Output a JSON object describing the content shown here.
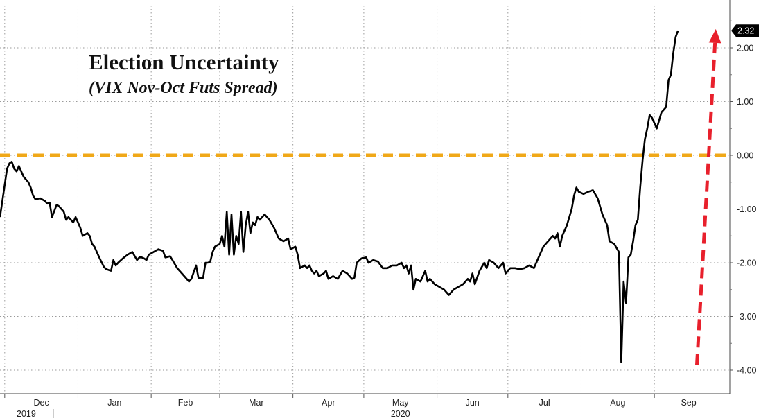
{
  "chart_data": {
    "type": "line",
    "title": "Election Uncertainty",
    "subtitle": "(VIX Nov-Oct Futs Spread)",
    "xlabel": "",
    "ylabel": "",
    "ylim": [
      -4.3,
      2.75
    ],
    "xlim": [
      "2019-11-29",
      "2020-09-30"
    ],
    "y_ticks": [
      2,
      1,
      0,
      -1,
      -2,
      -3,
      -4
    ],
    "y_tick_labels": [
      "2.00",
      "1.00",
      "0.00",
      "-1.00",
      "-2.00",
      "-3.00",
      "-4.00"
    ],
    "x_tick_labels": [
      "Dec",
      "Jan",
      "Feb",
      "Mar",
      "Apr",
      "May",
      "Jun",
      "Jul",
      "Aug",
      "Sep"
    ],
    "x_tick_dates": [
      "2019-12-01",
      "2020-01-01",
      "2020-02-01",
      "2020-03-01",
      "2020-04-01",
      "2020-05-01",
      "2020-06-01",
      "2020-07-01",
      "2020-08-01",
      "2020-09-01"
    ],
    "year_labels": [
      "2019",
      "2020"
    ],
    "grid": true,
    "axis_position": "right",
    "last_value_label": "2.32",
    "colors": {
      "line": "#000000",
      "reference_line": "#f0a818",
      "arrow": "#e8202c",
      "badge": "#000000",
      "grid": "#9a9a9a"
    },
    "reference_line": {
      "y": 0.0,
      "style": "dashed"
    },
    "arrow": {
      "from": [
        "2020-09-19",
        -3.9
      ],
      "to": [
        "2020-09-27",
        2.35
      ],
      "style": "dashed"
    },
    "series": [
      {
        "values": [
          [
            "2019-11-29",
            -1.15
          ],
          [
            "2019-12-02",
            -0.25
          ],
          [
            "2019-12-03",
            -0.15
          ],
          [
            "2019-12-04",
            -0.12
          ],
          [
            "2019-12-05",
            -0.25
          ],
          [
            "2019-12-06",
            -0.3
          ],
          [
            "2019-12-07",
            -0.2
          ],
          [
            "2019-12-08",
            -0.3
          ],
          [
            "2019-12-09",
            -0.4
          ],
          [
            "2019-12-10",
            -0.45
          ],
          [
            "2019-12-11",
            -0.5
          ],
          [
            "2019-12-12",
            -0.6
          ],
          [
            "2019-12-13",
            -0.75
          ],
          [
            "2019-12-14",
            -0.82
          ],
          [
            "2019-12-16",
            -0.8
          ],
          [
            "2019-12-18",
            -0.85
          ],
          [
            "2019-12-19",
            -0.9
          ],
          [
            "2019-12-20",
            -0.88
          ],
          [
            "2019-12-21",
            -1.15
          ],
          [
            "2019-12-23",
            -0.92
          ],
          [
            "2019-12-24",
            -0.95
          ],
          [
            "2019-12-26",
            -1.05
          ],
          [
            "2019-12-27",
            -1.2
          ],
          [
            "2019-12-28",
            -1.15
          ],
          [
            "2019-12-30",
            -1.25
          ],
          [
            "2019-12-31",
            -1.15
          ],
          [
            "2020-01-02",
            -1.35
          ],
          [
            "2020-01-03",
            -1.5
          ],
          [
            "2020-01-05",
            -1.45
          ],
          [
            "2020-01-06",
            -1.5
          ],
          [
            "2020-01-07",
            -1.65
          ],
          [
            "2020-01-08",
            -1.7
          ],
          [
            "2020-01-09",
            -1.8
          ],
          [
            "2020-01-10",
            -1.9
          ],
          [
            "2020-01-12",
            -2.08
          ],
          [
            "2020-01-13",
            -2.12
          ],
          [
            "2020-01-15",
            -2.15
          ],
          [
            "2020-01-16",
            -1.95
          ],
          [
            "2020-01-17",
            -2.05
          ],
          [
            "2020-01-18",
            -2.0
          ],
          [
            "2020-01-20",
            -1.92
          ],
          [
            "2020-01-22",
            -1.85
          ],
          [
            "2020-01-24",
            -1.8
          ],
          [
            "2020-01-26",
            -1.95
          ],
          [
            "2020-01-27",
            -1.9
          ],
          [
            "2020-01-28",
            -1.9
          ],
          [
            "2020-01-29",
            -1.92
          ],
          [
            "2020-01-30",
            -1.95
          ],
          [
            "2020-01-31",
            -1.85
          ],
          [
            "2020-02-02",
            -1.8
          ],
          [
            "2020-02-04",
            -1.75
          ],
          [
            "2020-02-06",
            -1.78
          ],
          [
            "2020-02-07",
            -1.9
          ],
          [
            "2020-02-09",
            -1.88
          ],
          [
            "2020-02-10",
            -1.95
          ],
          [
            "2020-02-12",
            -2.1
          ],
          [
            "2020-02-14",
            -2.2
          ],
          [
            "2020-02-17",
            -2.35
          ],
          [
            "2020-02-18",
            -2.3
          ],
          [
            "2020-02-20",
            -2.05
          ],
          [
            "2020-02-21",
            -2.28
          ],
          [
            "2020-02-23",
            -2.28
          ],
          [
            "2020-02-24",
            -2.0
          ],
          [
            "2020-02-25",
            -2.0
          ],
          [
            "2020-02-26",
            -1.98
          ],
          [
            "2020-02-27",
            -1.8
          ],
          [
            "2020-02-28",
            -1.7
          ],
          [
            "2020-03-01",
            -1.65
          ],
          [
            "2020-03-02",
            -1.5
          ],
          [
            "2020-03-03",
            -1.7
          ],
          [
            "2020-03-04",
            -1.05
          ],
          [
            "2020-03-05",
            -1.85
          ],
          [
            "2020-03-06",
            -1.1
          ],
          [
            "2020-03-07",
            -1.85
          ],
          [
            "2020-03-08",
            -1.5
          ],
          [
            "2020-03-09",
            -1.65
          ],
          [
            "2020-03-10",
            -1.05
          ],
          [
            "2020-03-11",
            -1.8
          ],
          [
            "2020-03-12",
            -1.3
          ],
          [
            "2020-03-13",
            -1.05
          ],
          [
            "2020-03-14",
            -1.45
          ],
          [
            "2020-03-15",
            -1.25
          ],
          [
            "2020-03-16",
            -1.3
          ],
          [
            "2020-03-17",
            -1.15
          ],
          [
            "2020-03-18",
            -1.2
          ],
          [
            "2020-03-20",
            -1.1
          ],
          [
            "2020-03-22",
            -1.2
          ],
          [
            "2020-03-24",
            -1.35
          ],
          [
            "2020-03-26",
            -1.55
          ],
          [
            "2020-03-28",
            -1.6
          ],
          [
            "2020-03-30",
            -1.55
          ],
          [
            "2020-03-31",
            -1.75
          ],
          [
            "2020-04-02",
            -1.7
          ],
          [
            "2020-04-03",
            -1.85
          ],
          [
            "2020-04-04",
            -2.1
          ],
          [
            "2020-04-06",
            -2.05
          ],
          [
            "2020-04-07",
            -2.1
          ],
          [
            "2020-04-08",
            -2.05
          ],
          [
            "2020-04-09",
            -2.15
          ],
          [
            "2020-04-10",
            -2.2
          ],
          [
            "2020-04-11",
            -2.15
          ],
          [
            "2020-04-12",
            -2.25
          ],
          [
            "2020-04-14",
            -2.2
          ],
          [
            "2020-04-15",
            -2.15
          ],
          [
            "2020-04-16",
            -2.3
          ],
          [
            "2020-04-18",
            -2.25
          ],
          [
            "2020-04-20",
            -2.3
          ],
          [
            "2020-04-22",
            -2.15
          ],
          [
            "2020-04-24",
            -2.2
          ],
          [
            "2020-04-26",
            -2.3
          ],
          [
            "2020-04-27",
            -2.28
          ],
          [
            "2020-04-28",
            -2.0
          ],
          [
            "2020-04-30",
            -1.92
          ],
          [
            "2020-05-02",
            -1.9
          ],
          [
            "2020-05-03",
            -2.0
          ],
          [
            "2020-05-05",
            -1.95
          ],
          [
            "2020-05-07",
            -1.98
          ],
          [
            "2020-05-09",
            -2.1
          ],
          [
            "2020-05-11",
            -2.1
          ],
          [
            "2020-05-13",
            -2.05
          ],
          [
            "2020-05-15",
            -2.05
          ],
          [
            "2020-05-17",
            -2.0
          ],
          [
            "2020-05-18",
            -2.1
          ],
          [
            "2020-05-19",
            -2.05
          ],
          [
            "2020-05-20",
            -2.2
          ],
          [
            "2020-05-21",
            -2.05
          ],
          [
            "2020-05-22",
            -2.5
          ],
          [
            "2020-05-23",
            -2.3
          ],
          [
            "2020-05-25",
            -2.35
          ],
          [
            "2020-05-27",
            -2.15
          ],
          [
            "2020-05-28",
            -2.35
          ],
          [
            "2020-05-29",
            -2.3
          ],
          [
            "2020-05-31",
            -2.4
          ],
          [
            "2020-06-02",
            -2.45
          ],
          [
            "2020-06-04",
            -2.5
          ],
          [
            "2020-06-06",
            -2.6
          ],
          [
            "2020-06-08",
            -2.5
          ],
          [
            "2020-06-10",
            -2.45
          ],
          [
            "2020-06-12",
            -2.4
          ],
          [
            "2020-06-14",
            -2.3
          ],
          [
            "2020-06-15",
            -2.35
          ],
          [
            "2020-06-16",
            -2.2
          ],
          [
            "2020-06-17",
            -2.4
          ],
          [
            "2020-06-19",
            -2.15
          ],
          [
            "2020-06-21",
            -2.0
          ],
          [
            "2020-06-22",
            -2.1
          ],
          [
            "2020-06-23",
            -1.95
          ],
          [
            "2020-06-25",
            -2.0
          ],
          [
            "2020-06-27",
            -2.1
          ],
          [
            "2020-06-29",
            -2.0
          ],
          [
            "2020-06-30",
            -2.2
          ],
          [
            "2020-07-02",
            -2.1
          ],
          [
            "2020-07-04",
            -2.1
          ],
          [
            "2020-07-06",
            -2.12
          ],
          [
            "2020-07-08",
            -2.1
          ],
          [
            "2020-07-10",
            -2.05
          ],
          [
            "2020-07-12",
            -2.1
          ],
          [
            "2020-07-14",
            -1.9
          ],
          [
            "2020-07-16",
            -1.7
          ],
          [
            "2020-07-18",
            -1.6
          ],
          [
            "2020-07-20",
            -1.5
          ],
          [
            "2020-07-21",
            -1.55
          ],
          [
            "2020-07-22",
            -1.45
          ],
          [
            "2020-07-23",
            -1.7
          ],
          [
            "2020-07-24",
            -1.5
          ],
          [
            "2020-07-26",
            -1.3
          ],
          [
            "2020-07-28",
            -1.0
          ],
          [
            "2020-07-29",
            -0.75
          ],
          [
            "2020-07-30",
            -0.6
          ],
          [
            "2020-07-31",
            -0.68
          ],
          [
            "2020-08-02",
            -0.72
          ],
          [
            "2020-08-04",
            -0.68
          ],
          [
            "2020-08-06",
            -0.65
          ],
          [
            "2020-08-08",
            -0.8
          ],
          [
            "2020-08-10",
            -1.1
          ],
          [
            "2020-08-12",
            -1.3
          ],
          [
            "2020-08-13",
            -1.6
          ],
          [
            "2020-08-15",
            -1.65
          ],
          [
            "2020-08-17",
            -1.8
          ],
          [
            "2020-08-18",
            -3.85
          ],
          [
            "2020-08-19",
            -2.35
          ],
          [
            "2020-08-20",
            -2.75
          ],
          [
            "2020-08-21",
            -1.9
          ],
          [
            "2020-08-22",
            -1.85
          ],
          [
            "2020-08-23",
            -1.6
          ],
          [
            "2020-08-24",
            -1.3
          ],
          [
            "2020-08-25",
            -1.2
          ],
          [
            "2020-08-26",
            -0.6
          ],
          [
            "2020-08-27",
            -0.1
          ],
          [
            "2020-08-28",
            0.3
          ],
          [
            "2020-08-29",
            0.5
          ],
          [
            "2020-08-30",
            0.75
          ],
          [
            "2020-08-31",
            0.7
          ],
          [
            "2020-09-02",
            0.5
          ],
          [
            "2020-09-04",
            0.8
          ],
          [
            "2020-09-06",
            0.9
          ],
          [
            "2020-09-07",
            1.4
          ],
          [
            "2020-09-08",
            1.5
          ],
          [
            "2020-09-09",
            1.9
          ],
          [
            "2020-09-10",
            2.2
          ],
          [
            "2020-09-11",
            2.32
          ]
        ]
      }
    ]
  }
}
